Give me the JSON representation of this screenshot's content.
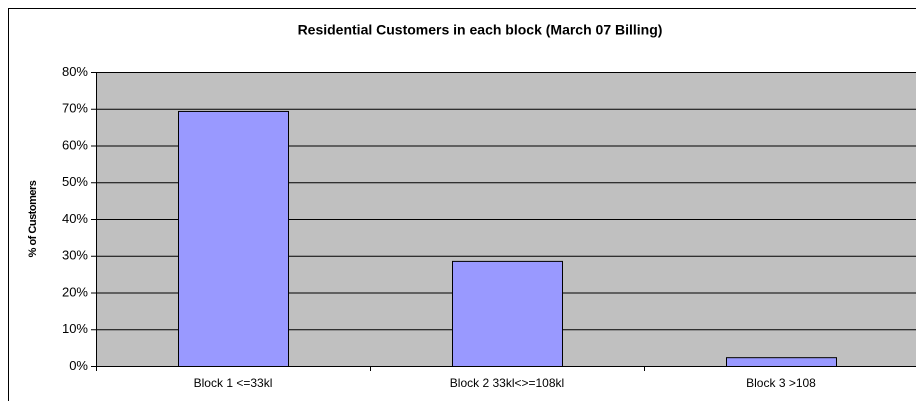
{
  "chart_data": {
    "type": "bar",
    "title": "Residential Customers in each block (March 07 Billing)",
    "y_label": "% of Customers",
    "categories": [
      "Block 1 <=33kl",
      "Block 2  33kl<>=108kl",
      "Block 3 >108"
    ],
    "values": [
      69.4,
      28.6,
      2.4
    ],
    "color": "#9999ff",
    "ylim": [
      0,
      80
    ],
    "yticks": [
      {
        "value": 0,
        "label": "0%"
      },
      {
        "value": 10,
        "label": "10%"
      },
      {
        "value": 20,
        "label": "20%"
      },
      {
        "value": 30,
        "label": "30%"
      },
      {
        "value": 40,
        "label": "40%"
      },
      {
        "value": 50,
        "label": "50%"
      },
      {
        "value": 60,
        "label": "60%"
      },
      {
        "value": 70,
        "label": "70%"
      },
      {
        "value": 80,
        "label": "80%"
      }
    ],
    "grid": true
  }
}
